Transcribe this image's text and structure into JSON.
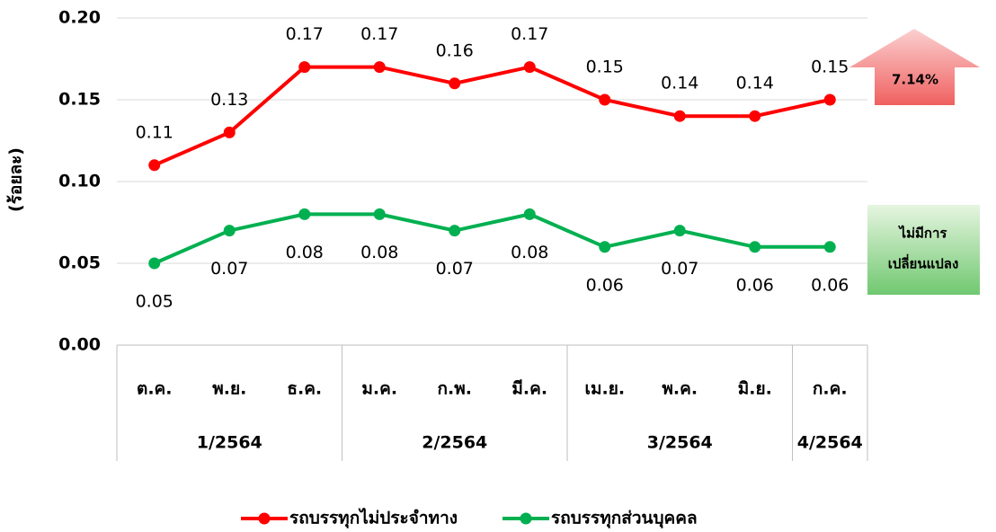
{
  "chart_data": {
    "type": "line",
    "y_label": "(ร้อยละ)",
    "categories": [
      "ต.ค.",
      "พ.ย.",
      "ธ.ค.",
      "ม.ค.",
      "ก.พ.",
      "มี.ค.",
      "เม.ย.",
      "พ.ค.",
      "มิ.ย.",
      "ก.ค."
    ],
    "groups": [
      {
        "label": "1/2564",
        "span": 3
      },
      {
        "label": "2/2564",
        "span": 3
      },
      {
        "label": "3/2564",
        "span": 3
      },
      {
        "label": "4/2564",
        "span": 1
      }
    ],
    "series": [
      {
        "name": "รถบรรทุกไม่ประจำทาง",
        "color": "#ff0000",
        "values": [
          0.11,
          0.13,
          0.17,
          0.17,
          0.16,
          0.17,
          0.15,
          0.14,
          0.14,
          0.15
        ]
      },
      {
        "name": "รถบรรทุกส่วนบุคคล",
        "color": "#00b050",
        "values": [
          0.05,
          0.07,
          0.08,
          0.08,
          0.07,
          0.08,
          0.06,
          0.07,
          0.06,
          0.06
        ]
      }
    ],
    "ylim": [
      0,
      0.2
    ],
    "yticks": [
      {
        "value": 0,
        "label": "0.00"
      },
      0.05,
      {
        "value": 0.1,
        "label": "0.10"
      },
      0.15,
      {
        "value": 0.2,
        "label": "0.20"
      }
    ],
    "grid": true,
    "legend": "bottom",
    "annotations": [
      {
        "lines": [
          "7.14%"
        ]
      },
      {
        "lines": [
          "ไม่มีการ",
          "เปลี่ยนแปลง"
        ]
      }
    ]
  }
}
